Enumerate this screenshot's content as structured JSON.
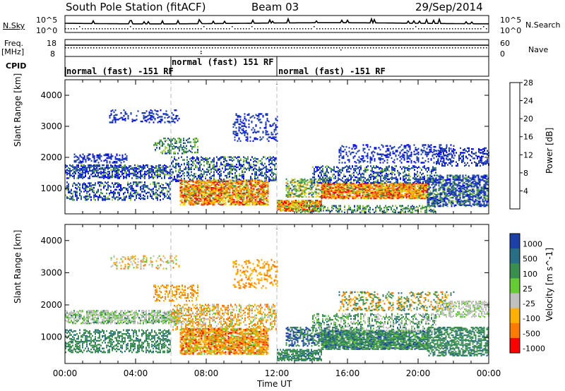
{
  "header": {
    "station": "South Pole Station (fitACF)",
    "beam": "Beam 03",
    "date": "29/Sep/2014"
  },
  "side_labels": {
    "nsky": "N.Sky",
    "freq": "Freq.",
    "freq_unit": "[MHz]",
    "cpid": "CPID",
    "nsearch": "N.Search",
    "nave": "Nave"
  },
  "noise_axis": {
    "left_ticks": [
      "10^5",
      "10^0"
    ],
    "right_ticks": [
      "10^5",
      "10^0"
    ]
  },
  "freq_axis": {
    "left_ticks": [
      "18",
      "8"
    ],
    "right_ticks": [
      "60",
      "0"
    ]
  },
  "cpid_segments": [
    {
      "label": "normal (fast) -151 RF",
      "start_hour": 0,
      "end_hour": 6
    },
    {
      "label": "normal (fast) 151 RF",
      "start_hour": 6,
      "end_hour": 12
    },
    {
      "label": "normal (fast) -151 RF",
      "start_hour": 12,
      "end_hour": 24
    }
  ],
  "x_axis": {
    "label": "Time UT",
    "ticks": [
      "00:00",
      "04:00",
      "08:00",
      "12:00",
      "16:00",
      "20:00",
      "00:00"
    ]
  },
  "chart_data": [
    {
      "type": "heatmap",
      "ylabel": "Slant Range [km]",
      "y_ticks": [
        1000,
        2000,
        3000,
        4000
      ],
      "ylim": [
        180,
        4500
      ],
      "xlim_hours": [
        0,
        24
      ],
      "colorbar": {
        "label": "Power [dB]",
        "ticks": [
          "4",
          "8",
          "12",
          "16",
          "20",
          "24",
          "28"
        ],
        "colors": [
          "#0000ff",
          "#1c3fa8",
          "#3b8f4e",
          "#9bd13b",
          "#ffd400",
          "#ff8a00",
          "#ff0000"
        ]
      },
      "features": [
        {
          "desc_hours": [
            0,
            6
          ],
          "range_km": [
            1300,
            1700
          ],
          "level": "low"
        },
        {
          "desc_hours": [
            7,
            11
          ],
          "range_km": [
            500,
            1200
          ],
          "level": "high"
        },
        {
          "desc_hours": [
            12.5,
            15
          ],
          "range_km": [
            250,
            600
          ],
          "level": "high"
        },
        {
          "desc_hours": [
            14.5,
            20.5
          ],
          "range_km": [
            700,
            1100
          ],
          "level": "high"
        }
      ]
    },
    {
      "type": "heatmap",
      "ylabel": "Slant Range [km]",
      "y_ticks": [
        1000,
        2000,
        3000,
        4000
      ],
      "ylim": [
        180,
        4500
      ],
      "xlim_hours": [
        0,
        24
      ],
      "colorbar": {
        "label": "Velocity [m s^-1]",
        "ticks": [
          "1000",
          "500",
          "100",
          "25",
          "-25",
          "-100",
          "-500",
          "-1000"
        ],
        "colors": [
          "#1c3fa8",
          "#2a6e86",
          "#3b8f4e",
          "#66cc33",
          "#c0c0c0",
          "#ffb000",
          "#ff7a00",
          "#ff0000"
        ]
      }
    }
  ]
}
